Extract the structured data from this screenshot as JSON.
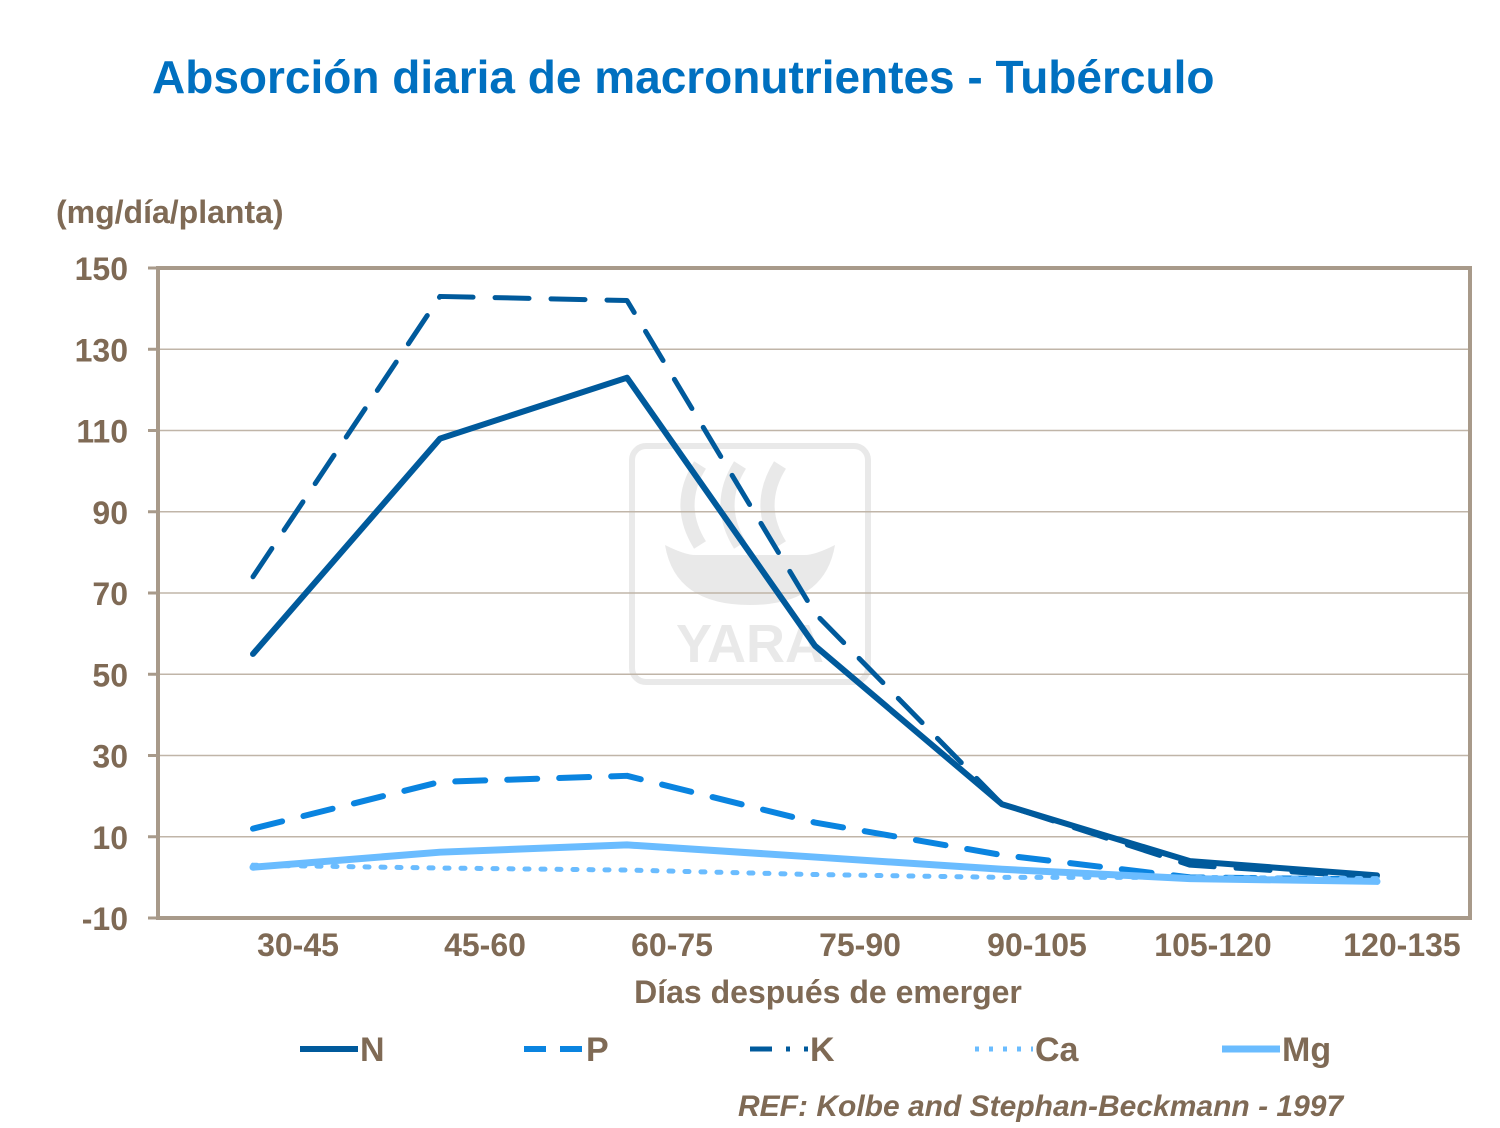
{
  "chart_data": {
    "type": "line",
    "title": "Absorción diaria de macronutrientes - Tubérculo",
    "ylabel": "(mg/día/planta)",
    "xlabel": "Días después de emerger",
    "categories": [
      "30-45",
      "45-60",
      "60-75",
      "75-90",
      "90-105",
      "105-120",
      "120-135"
    ],
    "ylim": [
      -10,
      150
    ],
    "yticks": [
      150,
      130,
      110,
      90,
      70,
      50,
      30,
      10,
      -10
    ],
    "grid": true,
    "legend_position": "bottom",
    "series": [
      {
        "name": "N",
        "values": [
          55,
          108,
          123,
          57,
          18,
          4,
          0.5
        ],
        "color": "#005a9c",
        "style": "solid"
      },
      {
        "name": "P",
        "values": [
          12,
          23.5,
          25,
          13.5,
          5.5,
          0,
          -0.5
        ],
        "color": "#0a84e0",
        "style": "dashed"
      },
      {
        "name": "K",
        "values": [
          74,
          143,
          142,
          65,
          18,
          3,
          0
        ],
        "color": "#005a9c",
        "style": "dashdot"
      },
      {
        "name": "Ca",
        "values": [
          3,
          2.3,
          1.8,
          0.7,
          0,
          0,
          -0.3
        ],
        "color": "#6abcff",
        "style": "dotted"
      },
      {
        "name": "Mg",
        "values": [
          2.5,
          6.2,
          8,
          5,
          2,
          -0.3,
          -1
        ],
        "color": "#6abcff",
        "style": "solid"
      }
    ],
    "watermark": "YARA",
    "reference": "REF: Kolbe and Stephan-Beckmann  - 1997"
  }
}
